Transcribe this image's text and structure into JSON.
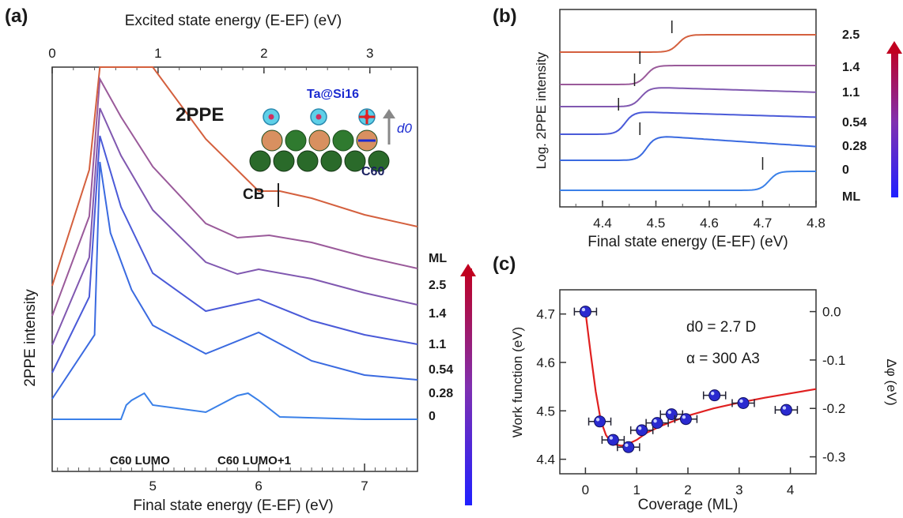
{
  "panel_labels": {
    "a": "(a)",
    "b": "(b)",
    "c": "(c)"
  },
  "panel_a": {
    "top_axis_title": "Excited state energy (E-EF) (eV)",
    "bottom_axis_title": "Final state energy (E-EF) (eV)",
    "y_axis_title": "2PPE intensity",
    "top_ticks": [
      "0",
      "1",
      "2",
      "3"
    ],
    "bottom_ticks": [
      "5",
      "6",
      "7"
    ],
    "annotation_2ppe": "2PPE",
    "annotation_cb": "CB",
    "label_lumo": "C60 LUMO",
    "label_lumo1": "C60 LUMO+1",
    "inset_molecule": "Ta@Si16",
    "inset_c60": "C60",
    "inset_dipole": "d0",
    "colorbar_title": "ML",
    "coverages": [
      "2.5",
      "1.4",
      "1.1",
      "0.54",
      "0.28",
      "0"
    ]
  },
  "panel_b": {
    "x_axis_title": "Final state energy (E-EF) (eV)",
    "y_axis_title": "Log. 2PPE intensity",
    "x_ticks": [
      "4.4",
      "4.5",
      "4.6",
      "4.7",
      "4.8"
    ],
    "coverages": [
      "2.5",
      "1.4",
      "1.1",
      "0.54",
      "0.28",
      "0"
    ],
    "unit_label": "ML"
  },
  "panel_c": {
    "x_axis_title": "Coverage (ML)",
    "y_axis_title": "Work function (eV)",
    "y2_axis_title": "Δφ (eV)",
    "x_ticks": [
      "0",
      "1",
      "2",
      "3",
      "4"
    ],
    "y_ticks": [
      "4.4",
      "4.5",
      "4.6",
      "4.7"
    ],
    "y2_ticks": [
      "0.0",
      "-0.1",
      "-0.2",
      "-0.3"
    ],
    "annotation_d0": "d0 = 2.7 D",
    "annotation_alpha": "α = 300 A3"
  },
  "colors": {
    "cov_2.5": "#d4603e",
    "cov_1.4": "#9a5a9a",
    "cov_1.1": "#8058b0",
    "cov_0.54": "#4a5ad8",
    "cov_0.28": "#3a6ae0",
    "cov_0": "#3a80e8",
    "fit": "#e02020",
    "marker": "#2a2ad0"
  },
  "chart_data": [
    {
      "panel": "a",
      "type": "line",
      "x_label": "Final state energy (E-EF) (eV)",
      "x2_label": "Excited state energy (E-EF) (eV)",
      "y_label": "2PPE intensity",
      "xlim": [
        4.05,
        7.5
      ],
      "x2lim": [
        0,
        3.45
      ],
      "annotations": [
        "2PPE",
        "CB",
        "C60 LUMO",
        "C60 LUMO+1"
      ],
      "series": [
        {
          "name": "2.5",
          "x": [
            4.4,
            4.5,
            4.7,
            5.0,
            5.5,
            6.0,
            6.2,
            6.5,
            7.0,
            7.5
          ],
          "y": [
            0.49,
            1.0,
            1.0,
            0.93,
            0.62,
            0.4,
            0.4,
            0.37,
            0.3,
            0.25
          ]
        },
        {
          "name": "1.4",
          "x": [
            4.4,
            4.5,
            4.7,
            5.0,
            5.5,
            5.8,
            6.1,
            6.5,
            7.0,
            7.5
          ],
          "y": [
            0.42,
            1.0,
            0.84,
            0.63,
            0.39,
            0.33,
            0.34,
            0.31,
            0.25,
            0.2
          ]
        },
        {
          "name": "1.1",
          "x": [
            4.4,
            4.5,
            4.7,
            5.0,
            5.5,
            5.8,
            6.0,
            6.5,
            7.0,
            7.5
          ],
          "y": [
            0.37,
            1.0,
            0.8,
            0.57,
            0.35,
            0.3,
            0.32,
            0.28,
            0.22,
            0.17
          ]
        },
        {
          "name": "0.54",
          "x": [
            4.4,
            4.5,
            4.7,
            5.0,
            5.5,
            6.0,
            6.5,
            7.0,
            7.5
          ],
          "y": [
            0.32,
            1.0,
            0.7,
            0.42,
            0.26,
            0.31,
            0.22,
            0.16,
            0.12
          ]
        },
        {
          "name": "0.28",
          "x": [
            4.45,
            4.5,
            4.6,
            4.8,
            5.0,
            5.5,
            6.0,
            6.5,
            7.0,
            7.5
          ],
          "y": [
            0.27,
            1.0,
            0.7,
            0.46,
            0.31,
            0.19,
            0.28,
            0.16,
            0.1,
            0.08
          ]
        },
        {
          "name": "0",
          "x": [
            4.7,
            4.75,
            4.8,
            4.92,
            5.0,
            5.5,
            5.8,
            5.9,
            6.0,
            6.2,
            7.0,
            7.5
          ],
          "y": [
            0.0,
            0.06,
            0.08,
            0.11,
            0.06,
            0.03,
            0.1,
            0.11,
            0.08,
            0.01,
            0.0,
            0.0
          ]
        }
      ]
    },
    {
      "panel": "b",
      "type": "line",
      "x_label": "Final state energy (E-EF) (eV)",
      "y_label": "Log. 2PPE intensity",
      "xlim": [
        4.32,
        4.8
      ],
      "series": [
        {
          "name": "2.5",
          "onset": 4.53
        },
        {
          "name": "1.4",
          "onset": 4.47
        },
        {
          "name": "1.1",
          "onset": 4.46
        },
        {
          "name": "0.54",
          "onset": 4.43
        },
        {
          "name": "0.28",
          "onset": 4.47
        },
        {
          "name": "0",
          "onset": 4.7
        }
      ]
    },
    {
      "panel": "c",
      "type": "scatter",
      "x_label": "Coverage (ML)",
      "y_label": "Work function (eV)",
      "y2_label": "Δφ (eV)",
      "xlim": [
        -0.5,
        4.5
      ],
      "ylim": [
        4.37,
        4.75
      ],
      "y2lim": [
        -0.335,
        0.045
      ],
      "points": [
        {
          "x": 0.0,
          "y": 4.705
        },
        {
          "x": 0.28,
          "y": 4.478
        },
        {
          "x": 0.54,
          "y": 4.44
        },
        {
          "x": 0.84,
          "y": 4.425
        },
        {
          "x": 1.1,
          "y": 4.46
        },
        {
          "x": 1.4,
          "y": 4.475
        },
        {
          "x": 1.68,
          "y": 4.493
        },
        {
          "x": 1.96,
          "y": 4.483
        },
        {
          "x": 2.52,
          "y": 4.532
        },
        {
          "x": 3.08,
          "y": 4.516
        },
        {
          "x": 3.92,
          "y": 4.502
        }
      ],
      "fit": {
        "x": [
          0.0,
          0.1,
          0.2,
          0.3,
          0.4,
          0.5,
          0.6,
          0.7,
          0.8,
          1.0,
          1.2,
          1.5,
          2.0,
          2.5,
          3.0,
          3.5,
          4.0,
          4.5
        ],
        "y": [
          4.705,
          4.62,
          4.54,
          4.48,
          4.45,
          4.435,
          4.43,
          4.428,
          4.43,
          4.44,
          4.455,
          4.47,
          4.49,
          4.505,
          4.517,
          4.527,
          4.536,
          4.545
        ]
      }
    }
  ]
}
